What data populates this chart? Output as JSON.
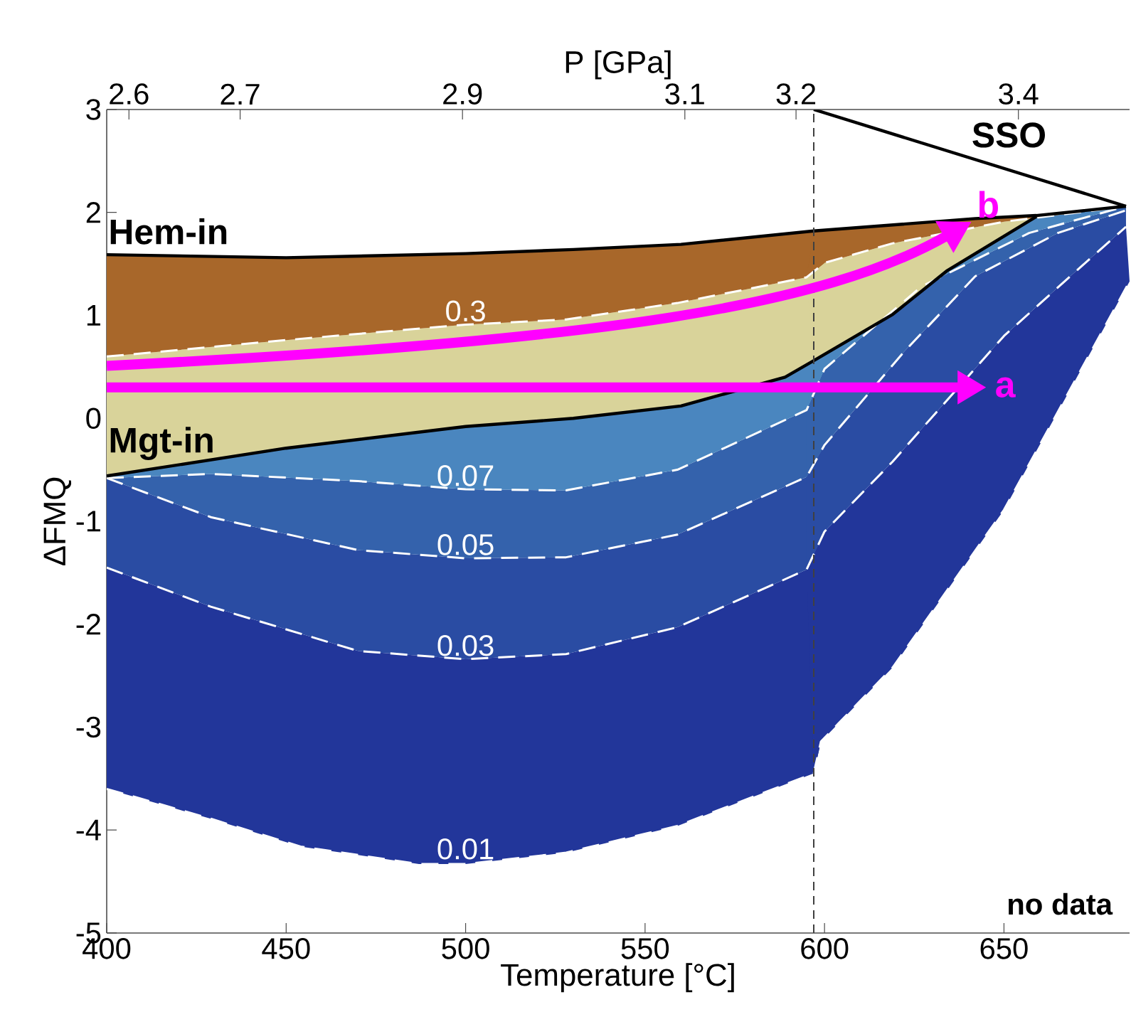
{
  "chart_data": {
    "type": "line",
    "xlabel": "Temperature [°C]",
    "ylabel": "ΔFMQ",
    "x2label": "P [GPa]",
    "xlim": [
      400,
      685
    ],
    "ylim": [
      -5,
      3
    ],
    "xticks": [
      400,
      450,
      500,
      550,
      600,
      650
    ],
    "yticks": [
      -5,
      -4,
      -3,
      -2,
      -1,
      0,
      1,
      2,
      3
    ],
    "x2lim": [
      2.58,
      3.5
    ],
    "x2ticks": [
      2.6,
      2.7,
      2.9,
      3.1,
      3.2,
      3.4
    ],
    "grid": false,
    "series": [
      {
        "name": "0.3",
        "color": "#ffffff",
        "line_style": "dashed",
        "x": [
          400,
          450,
          500,
          528,
          559,
          595,
          600,
          619,
          650,
          680
        ],
        "values": [
          0.6,
          0.76,
          0.91,
          0.96,
          1.12,
          1.37,
          1.51,
          1.7,
          1.91,
          2.04
        ]
      },
      {
        "name": "0.07",
        "color": "#ffffff",
        "line_style": "dashed",
        "x": [
          400,
          429,
          470,
          500,
          528,
          559,
          595,
          600,
          627,
          657,
          684
        ],
        "values": [
          -0.58,
          -0.54,
          -0.61,
          -0.69,
          -0.7,
          -0.5,
          0.08,
          0.48,
          1.28,
          1.8,
          2.06
        ]
      },
      {
        "name": "0.05",
        "color": "#ffffff",
        "line_style": "dashed",
        "x": [
          400,
          429,
          470,
          500,
          528,
          559,
          595,
          600,
          622,
          642,
          665,
          684
        ],
        "values": [
          -0.58,
          -0.96,
          -1.28,
          -1.36,
          -1.35,
          -1.13,
          -0.57,
          -0.26,
          0.64,
          1.38,
          1.8,
          2.02
        ]
      },
      {
        "name": "0.03",
        "color": "#ffffff",
        "line_style": "dashed",
        "x": [
          400,
          429,
          470,
          500,
          528,
          559,
          595,
          600,
          619,
          650,
          672,
          684
        ],
        "values": [
          -1.45,
          -1.83,
          -2.26,
          -2.34,
          -2.29,
          -2.03,
          -1.47,
          -1.1,
          -0.42,
          0.8,
          1.49,
          1.86
        ]
      },
      {
        "name": "0.01",
        "color": "#ffffff",
        "line_style": "dashed",
        "x": [
          400,
          429,
          454,
          487,
          500,
          528,
          559,
          597,
          599,
          619,
          650,
          685
        ],
        "values": [
          -3.6,
          -3.89,
          -4.16,
          -4.33,
          -4.33,
          -4.22,
          -3.96,
          -3.45,
          -3.14,
          -2.42,
          -0.89,
          1.33
        ]
      },
      {
        "name": "Hem-in",
        "color": "#000000",
        "line_style": "solid",
        "x": [
          400,
          450,
          500,
          530,
          560,
          597,
          642,
          659,
          684
        ],
        "values": [
          1.59,
          1.56,
          1.6,
          1.64,
          1.69,
          1.82,
          1.94,
          1.97,
          2.06
        ]
      },
      {
        "name": "Mgt-in",
        "color": "#000000",
        "line_style": "solid",
        "x": [
          400,
          450,
          500,
          530,
          560,
          589,
          597,
          619,
          634,
          659
        ],
        "values": [
          -0.56,
          -0.29,
          -0.08,
          0.0,
          0.12,
          0.4,
          0.56,
          1.01,
          1.43,
          1.96
        ]
      },
      {
        "name": "SSO",
        "color": "#000000",
        "line_style": "solid",
        "x": [
          597,
          684
        ],
        "values": [
          3.0,
          2.06
        ]
      }
    ],
    "ref_lines": [
      {
        "axis": "x",
        "value": 597,
        "color": "#404040",
        "line_style": "dashed"
      }
    ],
    "annotations": [
      "no data",
      "a",
      "b"
    ]
  }
}
